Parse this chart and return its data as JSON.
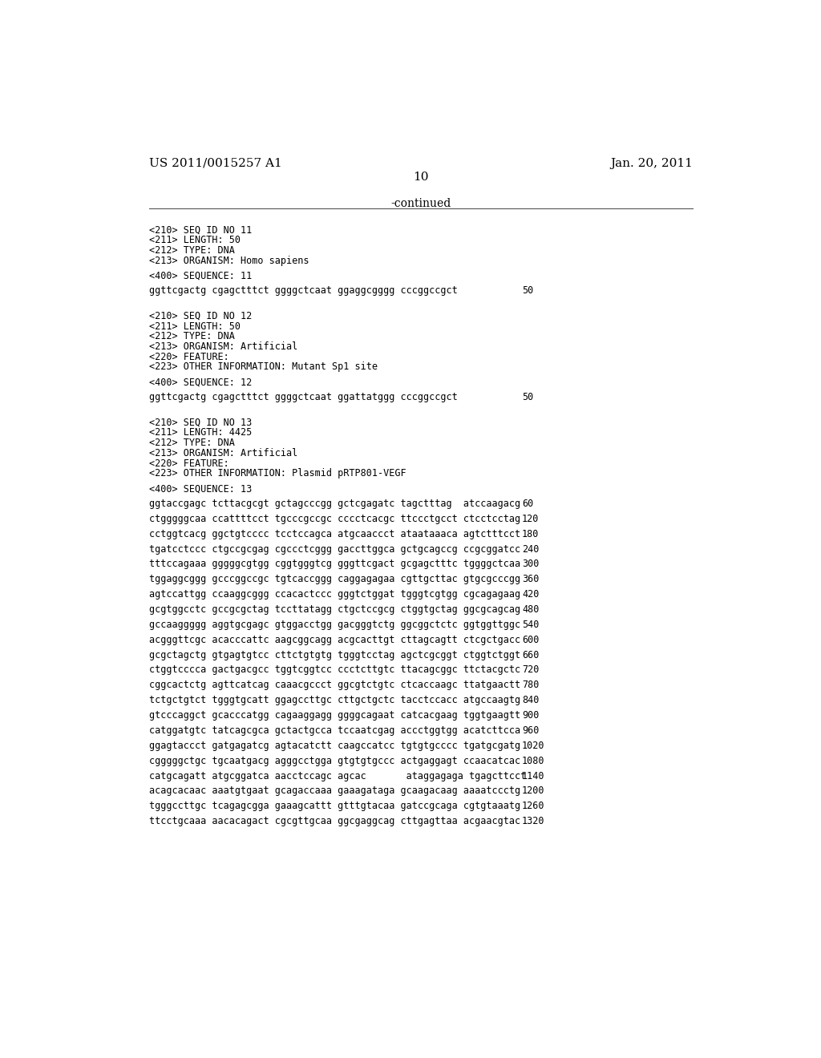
{
  "header_left": "US 2011/0015257 A1",
  "header_right": "Jan. 20, 2011",
  "page_number": "10",
  "continued_label": "-continued",
  "background_color": "#ffffff",
  "text_color": "#000000",
  "mono_font_size": 8.5,
  "header_font_size": 11.0,
  "page_num_font_size": 11.0,
  "content": [
    {
      "type": "blank"
    },
    {
      "type": "seq_header",
      "lines": [
        "<210> SEQ ID NO 11",
        "<211> LENGTH: 50",
        "<212> TYPE: DNA",
        "<213> ORGANISM: Homo sapiens"
      ]
    },
    {
      "type": "blank_small"
    },
    {
      "type": "seq_label",
      "text": "<400> SEQUENCE: 11"
    },
    {
      "type": "blank_small"
    },
    {
      "type": "seq_data",
      "sequence": "ggttcgactg cgagctttct ggggctcaat ggaggcgggg cccggccgct",
      "num": "50"
    },
    {
      "type": "blank"
    },
    {
      "type": "blank_small"
    },
    {
      "type": "seq_header",
      "lines": [
        "<210> SEQ ID NO 12",
        "<211> LENGTH: 50",
        "<212> TYPE: DNA",
        "<213> ORGANISM: Artificial",
        "<220> FEATURE:",
        "<223> OTHER INFORMATION: Mutant Sp1 site"
      ]
    },
    {
      "type": "blank_small"
    },
    {
      "type": "seq_label",
      "text": "<400> SEQUENCE: 12"
    },
    {
      "type": "blank_small"
    },
    {
      "type": "seq_data",
      "sequence": "ggttcgactg cgagctttct ggggctcaat ggattatggg cccggccgct",
      "num": "50"
    },
    {
      "type": "blank"
    },
    {
      "type": "blank_small"
    },
    {
      "type": "seq_header",
      "lines": [
        "<210> SEQ ID NO 13",
        "<211> LENGTH: 4425",
        "<212> TYPE: DNA",
        "<213> ORGANISM: Artificial",
        "<220> FEATURE:",
        "<223> OTHER INFORMATION: Plasmid pRTP801-VEGF"
      ]
    },
    {
      "type": "blank_small"
    },
    {
      "type": "seq_label",
      "text": "<400> SEQUENCE: 13"
    },
    {
      "type": "blank_small"
    },
    {
      "type": "seq_data",
      "sequence": "ggtaccgagc tcttacgcgt gctagcccgg gctcgagatc tagctttag  atccaagacg",
      "num": "60"
    },
    {
      "type": "blank_small"
    },
    {
      "type": "seq_data",
      "sequence": "ctgggggcaa ccattttcct tgcccgccgc cccctcacgc ttccctgcct ctcctcctag",
      "num": "120"
    },
    {
      "type": "blank_small"
    },
    {
      "type": "seq_data",
      "sequence": "cctggtcacg ggctgtcccc tcctccagca atgcaaccct ataataaaca agtctttcct",
      "num": "180"
    },
    {
      "type": "blank_small"
    },
    {
      "type": "seq_data",
      "sequence": "tgatcctccc ctgccgcgag cgccctcggg gaccttggca gctgcagccg ccgcggatcc",
      "num": "240"
    },
    {
      "type": "blank_small"
    },
    {
      "type": "seq_data",
      "sequence": "tttccagaaa gggggcgtgg cggtgggtcg gggttcgact gcgagctttc tggggctcaa",
      "num": "300"
    },
    {
      "type": "blank_small"
    },
    {
      "type": "seq_data",
      "sequence": "tggaggcggg gcccggccgc tgtcaccggg caggagagaa cgttgcttac gtgcgcccgg",
      "num": "360"
    },
    {
      "type": "blank_small"
    },
    {
      "type": "seq_data",
      "sequence": "agtccattgg ccaaggcggg ccacactccc gggtctggat tgggtcgtgg cgcagagaag",
      "num": "420"
    },
    {
      "type": "blank_small"
    },
    {
      "type": "seq_data",
      "sequence": "gcgtggcctc gccgcgctag tccttatagg ctgctccgcg ctggtgctag ggcgcagcag",
      "num": "480"
    },
    {
      "type": "blank_small"
    },
    {
      "type": "seq_data",
      "sequence": "gccaaggggg aggtgcgagc gtggacctgg gacgggtctg ggcggctctc ggtggttggc",
      "num": "540"
    },
    {
      "type": "blank_small"
    },
    {
      "type": "seq_data",
      "sequence": "acgggttcgc acacccattc aagcggcagg acgcacttgt cttagcagtt ctcgctgacc",
      "num": "600"
    },
    {
      "type": "blank_small"
    },
    {
      "type": "seq_data",
      "sequence": "gcgctagctg gtgagtgtcc cttctgtgtg tgggtcctag agctcgcggt ctggtctggt",
      "num": "660"
    },
    {
      "type": "blank_small"
    },
    {
      "type": "seq_data",
      "sequence": "ctggtcccca gactgacgcc tggtcggtcc ccctcttgtc ttacagcggc ttctacgctc",
      "num": "720"
    },
    {
      "type": "blank_small"
    },
    {
      "type": "seq_data",
      "sequence": "cggcactctg agttcatcag caaacgccct ggcgtctgtc ctcaccaagc ttatgaactt",
      "num": "780"
    },
    {
      "type": "blank_small"
    },
    {
      "type": "seq_data",
      "sequence": "tctgctgtct tgggtgcatt ggagccttgc cttgctgctc tacctccacc atgccaagtg",
      "num": "840"
    },
    {
      "type": "blank_small"
    },
    {
      "type": "seq_data",
      "sequence": "gtcccaggct gcacccatgg cagaaggagg ggggcagaat catcacgaag tggtgaagtt",
      "num": "900"
    },
    {
      "type": "blank_small"
    },
    {
      "type": "seq_data",
      "sequence": "catggatgtc tatcagcgca gctactgcca tccaatcgag accctggtgg acatcttcca",
      "num": "960"
    },
    {
      "type": "blank_small"
    },
    {
      "type": "seq_data",
      "sequence": "ggagtaccct gatgagatcg agtacatctt caagccatcc tgtgtgcccc tgatgcgatg",
      "num": "1020"
    },
    {
      "type": "blank_small"
    },
    {
      "type": "seq_data",
      "sequence": "cgggggctgc tgcaatgacg agggcctgga gtgtgtgccc actgaggagt ccaacatcac",
      "num": "1080"
    },
    {
      "type": "blank_small"
    },
    {
      "type": "seq_data",
      "sequence": "catgcagatt atgcggatca aacctccagc agcac       ataggagaga tgagcttcct",
      "num": "1140"
    },
    {
      "type": "blank_small"
    },
    {
      "type": "seq_data",
      "sequence": "acagcacaac aaatgtgaat gcagaccaaa gaaagataga gcaagacaag aaaatccctg",
      "num": "1200"
    },
    {
      "type": "blank_small"
    },
    {
      "type": "seq_data",
      "sequence": "tgggccttgc tcagagcgga gaaagcattt gtttgtacaa gatccgcaga cgtgtaaatg",
      "num": "1260"
    },
    {
      "type": "blank_small"
    },
    {
      "type": "seq_data",
      "sequence": "ttcctgcaaa aacacagact cgcgttgcaa ggcgaggcag cttgagttaa acgaacgtac",
      "num": "1320"
    }
  ]
}
